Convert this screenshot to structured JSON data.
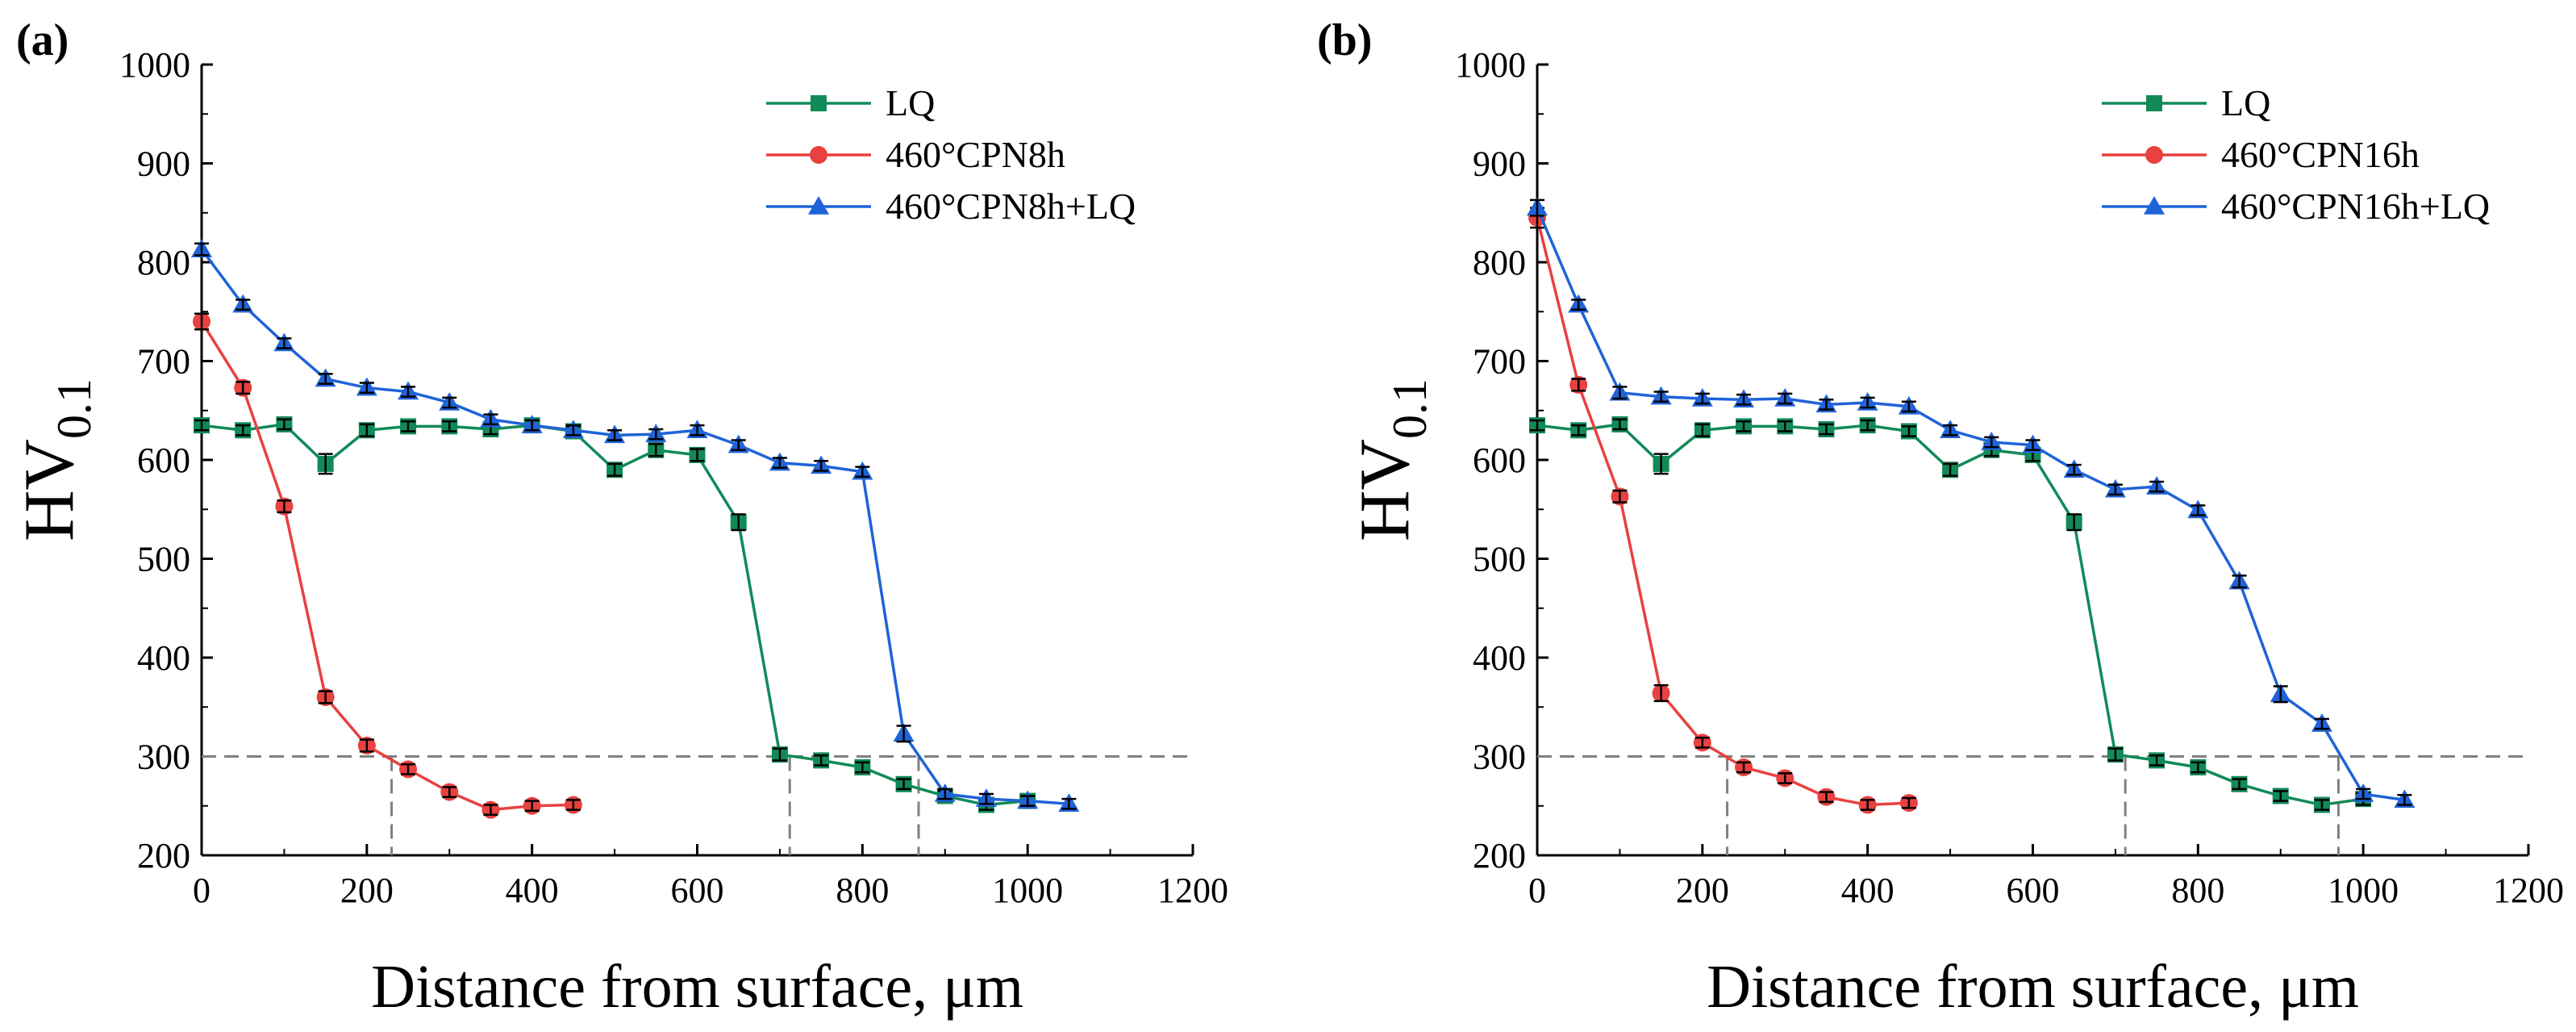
{
  "figure": {
    "panels": [
      {
        "label": "(a)",
        "ylabel_main": "HV",
        "ylabel_sub": "0.1",
        "xlabel": "Distance from surface, μm",
        "yticks": [
          "200",
          "300",
          "400",
          "500",
          "600",
          "700",
          "800",
          "900",
          "1000"
        ],
        "xticks": [
          "0",
          "200",
          "400",
          "600",
          "800",
          "1000",
          "1200"
        ],
        "legend": [
          "LQ",
          "460°CPN8h",
          "460°CPN8h+LQ"
        ]
      },
      {
        "label": "(b)",
        "ylabel_main": "HV",
        "ylabel_sub": "0.1",
        "xlabel": "Distance from surface, μm",
        "yticks": [
          "200",
          "300",
          "400",
          "500",
          "600",
          "700",
          "800",
          "900",
          "1000"
        ],
        "xticks": [
          "0",
          "200",
          "400",
          "600",
          "800",
          "1000",
          "1200"
        ],
        "legend": [
          "LQ",
          "460°CPN16h",
          "460°CPN16h+LQ"
        ]
      }
    ]
  },
  "colors": {
    "lq": "#118a58",
    "cpn": "#e8413f",
    "cpnlq": "#1f63d8",
    "reference": "#808080"
  },
  "chart_data": [
    {
      "type": "line",
      "xlim": [
        0,
        1200
      ],
      "ylim": [
        200,
        1000
      ],
      "xlabel": "Distance from surface, μm",
      "ylabel": "HV0.1",
      "legend_position": "top-right",
      "reference_line_y": 300,
      "reference_drops_x": [
        230,
        712,
        868
      ],
      "series": [
        {
          "name": "LQ",
          "marker": "square",
          "color": "#118a58",
          "x": [
            0,
            50,
            100,
            150,
            200,
            250,
            300,
            350,
            400,
            450,
            500,
            550,
            600,
            650,
            700,
            750,
            800,
            850,
            900,
            950,
            1000
          ],
          "y": [
            635,
            630,
            636,
            596,
            630,
            634,
            634,
            631,
            635,
            629,
            590,
            610,
            605,
            537,
            302,
            296,
            289,
            272,
            260,
            251,
            255
          ],
          "err": [
            5,
            5,
            5,
            10,
            6,
            5,
            5,
            5,
            5,
            5,
            6,
            6,
            6,
            8,
            6,
            5,
            5,
            5,
            5,
            5,
            5
          ]
        },
        {
          "name": "460°CPN8h",
          "marker": "circle",
          "color": "#e8413f",
          "x": [
            0,
            50,
            100,
            150,
            200,
            250,
            300,
            350,
            400,
            450
          ],
          "y": [
            740,
            673,
            553,
            360,
            311,
            287,
            264,
            246,
            250,
            251
          ],
          "err": [
            8,
            6,
            6,
            6,
            6,
            5,
            5,
            5,
            5,
            5
          ]
        },
        {
          "name": "460°CPN8h+LQ",
          "marker": "triangle",
          "color": "#1f63d8",
          "x": [
            0,
            50,
            100,
            150,
            200,
            250,
            300,
            350,
            400,
            450,
            500,
            550,
            600,
            650,
            700,
            750,
            800,
            850,
            900,
            950,
            1000,
            1050
          ],
          "y": [
            813,
            757,
            718,
            682,
            673,
            669,
            658,
            641,
            635,
            630,
            625,
            626,
            630,
            615,
            597,
            594,
            588,
            323,
            262,
            257,
            255,
            252
          ],
          "err": [
            6,
            5,
            5,
            5,
            5,
            5,
            5,
            5,
            5,
            5,
            5,
            5,
            5,
            5,
            5,
            5,
            5,
            8,
            5,
            5,
            5,
            5
          ]
        }
      ]
    },
    {
      "type": "line",
      "xlim": [
        0,
        1200
      ],
      "ylim": [
        200,
        1000
      ],
      "xlabel": "Distance from surface, μm",
      "ylabel": "HV0.1",
      "legend_position": "top-right",
      "reference_line_y": 300,
      "reference_drops_x": [
        230,
        712,
        970
      ],
      "series": [
        {
          "name": "LQ",
          "marker": "square",
          "color": "#118a58",
          "x": [
            0,
            50,
            100,
            150,
            200,
            250,
            300,
            350,
            400,
            450,
            500,
            550,
            600,
            650,
            700,
            750,
            800,
            850,
            900,
            950,
            1000
          ],
          "y": [
            635,
            630,
            636,
            596,
            630,
            634,
            634,
            631,
            635,
            629,
            590,
            610,
            605,
            537,
            302,
            296,
            289,
            272,
            260,
            251,
            257
          ],
          "err": [
            5,
            5,
            5,
            10,
            6,
            5,
            5,
            5,
            5,
            5,
            6,
            6,
            6,
            8,
            6,
            5,
            5,
            5,
            5,
            5,
            6
          ]
        },
        {
          "name": "460°CPN16h",
          "marker": "circle",
          "color": "#e8413f",
          "x": [
            0,
            50,
            100,
            150,
            200,
            250,
            300,
            350,
            400,
            450
          ],
          "y": [
            845,
            676,
            563,
            364,
            314,
            289,
            278,
            259,
            251,
            253
          ],
          "err": [
            10,
            6,
            6,
            8,
            5,
            5,
            5,
            5,
            5,
            5
          ]
        },
        {
          "name": "460°CPN16h+LQ",
          "marker": "triangle",
          "color": "#1f63d8",
          "x": [
            0,
            50,
            100,
            150,
            200,
            250,
            300,
            350,
            400,
            450,
            500,
            550,
            600,
            650,
            700,
            750,
            800,
            850,
            900,
            950,
            1000,
            1050
          ],
          "y": [
            855,
            757,
            668,
            664,
            662,
            661,
            662,
            656,
            658,
            654,
            630,
            618,
            615,
            590,
            570,
            573,
            549,
            477,
            363,
            333,
            262,
            256
          ],
          "err": [
            8,
            5,
            6,
            5,
            5,
            5,
            5,
            5,
            5,
            5,
            5,
            5,
            5,
            5,
            5,
            5,
            5,
            6,
            8,
            5,
            5,
            5
          ]
        }
      ]
    }
  ]
}
